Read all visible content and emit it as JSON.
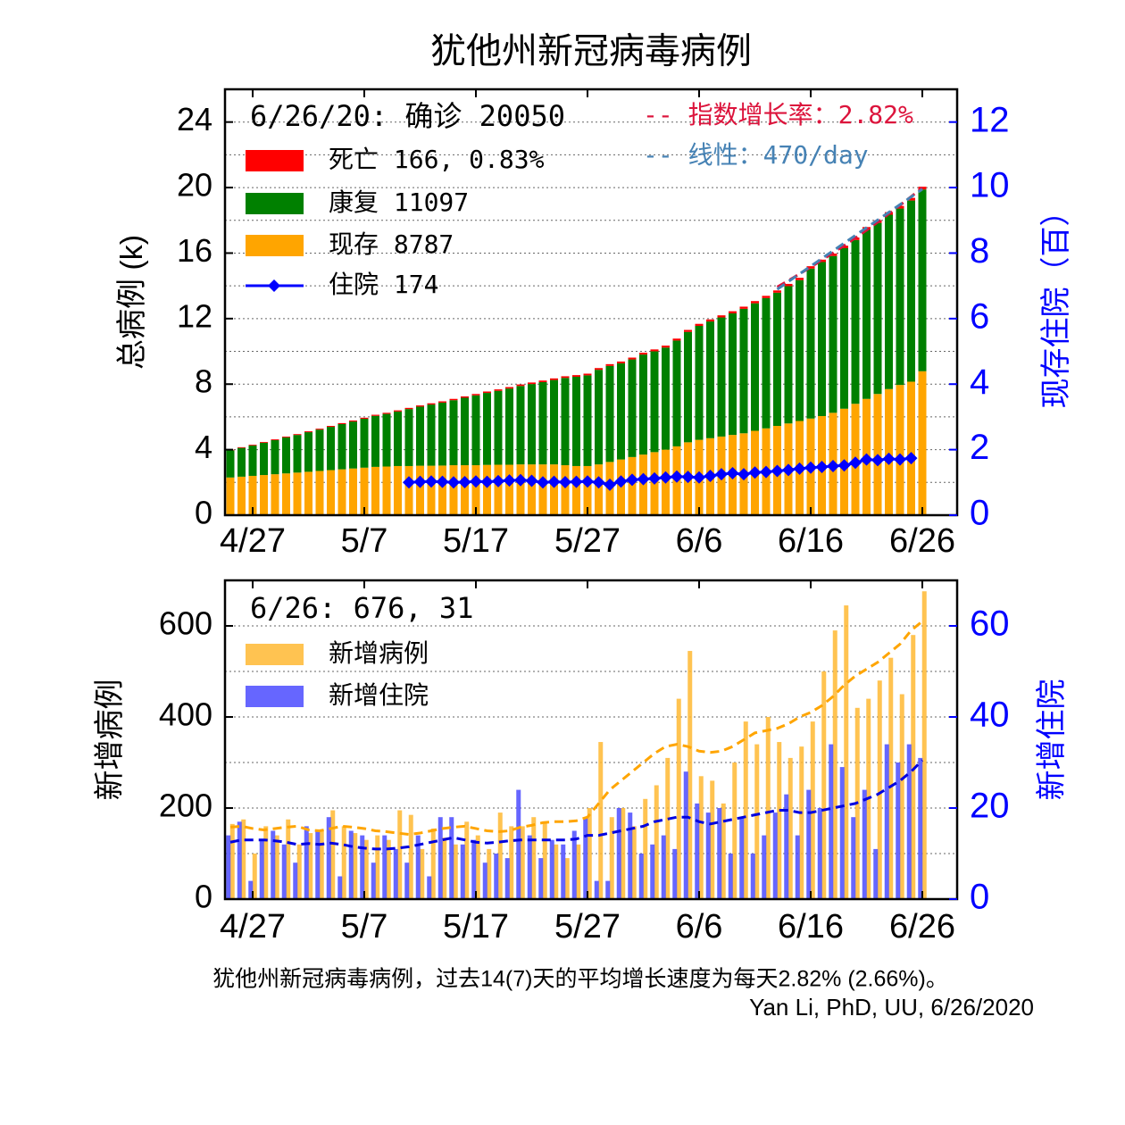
{
  "title": "犹他州新冠病毒病例",
  "footer": [
    "犹他州新冠病毒病例，过去14(7)天的平均增长速度为每天2.82% (2.66%)。",
    "Yan Li, PhD, UU, 6/26/2020"
  ],
  "chart_data": [
    {
      "type": "bar",
      "stacked": true,
      "annotation": "6/26/20: 确诊 20050",
      "ylabel": "总病例 (k)",
      "y2label": "现存住院（百）",
      "x": [
        "4/25",
        "4/26",
        "4/27",
        "4/28",
        "4/29",
        "4/30",
        "5/1",
        "5/2",
        "5/3",
        "5/4",
        "5/5",
        "5/6",
        "5/7",
        "5/8",
        "5/9",
        "5/10",
        "5/11",
        "5/12",
        "5/13",
        "5/14",
        "5/15",
        "5/16",
        "5/17",
        "5/18",
        "5/19",
        "5/20",
        "5/21",
        "5/22",
        "5/23",
        "5/24",
        "5/25",
        "5/26",
        "5/27",
        "5/28",
        "5/29",
        "5/30",
        "5/31",
        "6/1",
        "6/2",
        "6/3",
        "6/4",
        "6/5",
        "6/6",
        "6/7",
        "6/8",
        "6/9",
        "6/10",
        "6/11",
        "6/12",
        "6/13",
        "6/14",
        "6/15",
        "6/16",
        "6/17",
        "6/18",
        "6/19",
        "6/20",
        "6/21",
        "6/22",
        "6/23",
        "6/24",
        "6/25",
        "6/26"
      ],
      "xticks": [
        "4/27",
        "5/7",
        "5/17",
        "5/27",
        "6/6",
        "6/16",
        "6/26"
      ],
      "ylim": [
        0,
        26
      ],
      "yticks": [
        0,
        4,
        8,
        12,
        16,
        20,
        24
      ],
      "yminor": [
        2,
        6,
        10,
        14,
        18,
        22
      ],
      "grid": true,
      "y2lim": [
        0,
        13
      ],
      "y2ticks": [
        0,
        2,
        4,
        6,
        8,
        10,
        12
      ],
      "series": [
        {
          "name": "死亡 166, 0.83%",
          "color": "#ff0000",
          "kind": "bar",
          "values": [
            0.04,
            0.042,
            0.044,
            0.046,
            0.048,
            0.05,
            0.052,
            0.054,
            0.056,
            0.058,
            0.06,
            0.062,
            0.064,
            0.066,
            0.068,
            0.07,
            0.072,
            0.074,
            0.076,
            0.078,
            0.08,
            0.082,
            0.084,
            0.086,
            0.088,
            0.09,
            0.092,
            0.094,
            0.096,
            0.098,
            0.1,
            0.102,
            0.104,
            0.106,
            0.108,
            0.11,
            0.112,
            0.114,
            0.116,
            0.118,
            0.12,
            0.122,
            0.124,
            0.126,
            0.128,
            0.13,
            0.132,
            0.134,
            0.136,
            0.138,
            0.14,
            0.142,
            0.144,
            0.146,
            0.148,
            0.15,
            0.152,
            0.154,
            0.156,
            0.158,
            0.16,
            0.162,
            0.166
          ]
        },
        {
          "name": "康复 11097",
          "color": "#008000",
          "kind": "bar",
          "values": [
            1.66,
            1.758,
            1.856,
            1.974,
            2.082,
            2.2,
            2.298,
            2.416,
            2.524,
            2.642,
            2.76,
            2.868,
            2.986,
            3.114,
            3.212,
            3.33,
            3.478,
            3.606,
            3.734,
            3.842,
            3.97,
            4.118,
            4.266,
            4.394,
            4.512,
            4.65,
            4.788,
            4.906,
            5.024,
            5.152,
            5.33,
            5.448,
            5.536,
            5.774,
            5.862,
            5.87,
            5.958,
            6.106,
            6.154,
            6.232,
            6.46,
            6.738,
            6.956,
            7.124,
            7.272,
            7.42,
            7.598,
            7.786,
            7.954,
            8.132,
            8.38,
            8.598,
            9.156,
            9.404,
            9.572,
            9.8,
            9.998,
            10.336,
            10.444,
            10.642,
            10.77,
            11.058,
            11.097
          ]
        },
        {
          "name": "现存 8787",
          "color": "#ffa500",
          "kind": "bar",
          "values": [
            2.3,
            2.35,
            2.4,
            2.45,
            2.5,
            2.55,
            2.6,
            2.65,
            2.7,
            2.75,
            2.8,
            2.85,
            2.9,
            2.95,
            2.97,
            3.0,
            3.0,
            3.02,
            3.02,
            3.03,
            3.05,
            3.05,
            3.05,
            3.07,
            3.08,
            3.08,
            3.1,
            3.1,
            3.1,
            3.1,
            3.05,
            3.0,
            3.0,
            3.1,
            3.25,
            3.4,
            3.55,
            3.7,
            3.85,
            4.0,
            4.2,
            4.45,
            4.6,
            4.7,
            4.8,
            4.9,
            5.0,
            5.15,
            5.3,
            5.45,
            5.6,
            5.75,
            5.9,
            6.05,
            6.25,
            6.5,
            6.8,
            7.1,
            7.4,
            7.7,
            7.95,
            8.15,
            8.787
          ]
        },
        {
          "name": "住院 174",
          "color": "#0000ff",
          "kind": "line",
          "marker": "diamond",
          "axis": "y2",
          "values": [
            null,
            null,
            null,
            null,
            null,
            null,
            null,
            null,
            null,
            null,
            null,
            null,
            null,
            null,
            null,
            null,
            1.0,
            1.02,
            1.03,
            1.02,
            1.0,
            1.01,
            1.03,
            1.02,
            1.04,
            1.06,
            1.07,
            1.05,
            1.0,
            1.02,
            1.01,
            1.02,
            1.03,
            1.0,
            0.93,
            1.03,
            1.08,
            1.1,
            1.12,
            1.15,
            1.18,
            1.17,
            1.15,
            1.2,
            1.25,
            1.28,
            1.25,
            1.3,
            1.32,
            1.35,
            1.38,
            1.42,
            1.45,
            1.47,
            1.5,
            1.52,
            1.6,
            1.7,
            1.68,
            1.72,
            1.7,
            1.74,
            null
          ]
        },
        {
          "name": "-- 指数增长率：2.82%",
          "color": "#dc143c",
          "kind": "line",
          "dash": true,
          "values": [
            null,
            null,
            null,
            null,
            null,
            null,
            null,
            null,
            null,
            null,
            null,
            null,
            null,
            null,
            null,
            null,
            null,
            null,
            null,
            null,
            null,
            null,
            null,
            null,
            null,
            null,
            null,
            null,
            null,
            null,
            null,
            null,
            null,
            null,
            null,
            null,
            null,
            null,
            null,
            null,
            null,
            null,
            null,
            null,
            null,
            null,
            null,
            null,
            null,
            13.93,
            14.32,
            14.73,
            15.14,
            15.57,
            16.01,
            16.46,
            16.93,
            17.4,
            17.89,
            18.4,
            18.92,
            19.45,
            20.0
          ]
        },
        {
          "name": "-- 线性：470/day",
          "color": "#4682b4",
          "kind": "line",
          "dash": true,
          "values": [
            null,
            null,
            null,
            null,
            null,
            null,
            null,
            null,
            null,
            null,
            null,
            null,
            null,
            null,
            null,
            null,
            null,
            null,
            null,
            null,
            null,
            null,
            null,
            null,
            null,
            null,
            null,
            null,
            null,
            null,
            null,
            null,
            null,
            null,
            null,
            null,
            null,
            null,
            null,
            null,
            null,
            null,
            null,
            null,
            null,
            null,
            null,
            null,
            null,
            13.79,
            14.26,
            14.73,
            15.2,
            15.67,
            16.14,
            16.61,
            17.08,
            17.55,
            18.02,
            18.49,
            18.96,
            19.43,
            19.9
          ]
        }
      ]
    },
    {
      "type": "bar",
      "stacked": false,
      "annotation": "6/26: 676, 31",
      "ylabel": "新增病例",
      "y2label": "新增住院",
      "x": [
        "4/25",
        "4/26",
        "4/27",
        "4/28",
        "4/29",
        "4/30",
        "5/1",
        "5/2",
        "5/3",
        "5/4",
        "5/5",
        "5/6",
        "5/7",
        "5/8",
        "5/9",
        "5/10",
        "5/11",
        "5/12",
        "5/13",
        "5/14",
        "5/15",
        "5/16",
        "5/17",
        "5/18",
        "5/19",
        "5/20",
        "5/21",
        "5/22",
        "5/23",
        "5/24",
        "5/25",
        "5/26",
        "5/27",
        "5/28",
        "5/29",
        "5/30",
        "5/31",
        "6/1",
        "6/2",
        "6/3",
        "6/4",
        "6/5",
        "6/6",
        "6/7",
        "6/8",
        "6/9",
        "6/10",
        "6/11",
        "6/12",
        "6/13",
        "6/14",
        "6/15",
        "6/16",
        "6/17",
        "6/18",
        "6/19",
        "6/20",
        "6/21",
        "6/22",
        "6/23",
        "6/24",
        "6/25",
        "6/26"
      ],
      "xticks": [
        "4/27",
        "5/7",
        "5/17",
        "5/27",
        "6/6",
        "6/16",
        "6/26"
      ],
      "ylim": [
        0,
        700
      ],
      "yticks": [
        0,
        200,
        400,
        600
      ],
      "yminor": [
        100,
        300,
        500
      ],
      "grid": true,
      "y2lim": [
        0,
        70
      ],
      "y2ticks": [
        0,
        20,
        40,
        60
      ],
      "series": [
        {
          "name": "新增病例",
          "color": "#ffb833",
          "kind": "bar",
          "values": [
            165,
            175,
            100,
            160,
            140,
            175,
            120,
            145,
            150,
            195,
            160,
            145,
            130,
            140,
            130,
            195,
            185,
            110,
            155,
            135,
            120,
            170,
            140,
            110,
            190,
            160,
            160,
            180,
            170,
            120,
            90,
            120,
            200,
            345,
            180,
            200,
            160,
            220,
            250,
            310,
            440,
            545,
            270,
            260,
            210,
            300,
            390,
            340,
            400,
            345,
            310,
            335,
            390,
            500,
            590,
            645,
            420,
            440,
            480,
            530,
            450,
            580,
            676
          ]
        },
        {
          "name": "新增住院",
          "color": "#4b4bff",
          "kind": "bar",
          "axis": "y2",
          "values": [
            14,
            17,
            4,
            13,
            15,
            12,
            8,
            16,
            15,
            18,
            5,
            15,
            14,
            8,
            14,
            11,
            8,
            14,
            5,
            18,
            18,
            12,
            13,
            8,
            10,
            9,
            24,
            14,
            9,
            13,
            12,
            15,
            18,
            4,
            4,
            20,
            19,
            10,
            12,
            14,
            11,
            28,
            21,
            19,
            20,
            10,
            18,
            10,
            14,
            19,
            23,
            14,
            24,
            20,
            34,
            29,
            18,
            24,
            11,
            34,
            30,
            34,
            31
          ]
        },
        {
          "color": "#ffa500",
          "kind": "line",
          "dash": true,
          "values": [
            158,
            160,
            155,
            152,
            155,
            158,
            160,
            152,
            150,
            155,
            160,
            158,
            155,
            150,
            148,
            145,
            142,
            145,
            150,
            155,
            158,
            160,
            155,
            150,
            148,
            150,
            158,
            162,
            168,
            170,
            170,
            172,
            180,
            210,
            240,
            260,
            280,
            300,
            320,
            335,
            340,
            335,
            325,
            322,
            325,
            335,
            350,
            365,
            370,
            375,
            385,
            400,
            410,
            425,
            445,
            470,
            490,
            505,
            520,
            540,
            560,
            590,
            610
          ]
        },
        {
          "color": "#0000e0",
          "kind": "line",
          "dash": true,
          "axis": "y2",
          "values": [
            12.5,
            13,
            13,
            13,
            12.8,
            12.5,
            12,
            12.2,
            12,
            12.3,
            12,
            11.5,
            11.2,
            11,
            11,
            11.2,
            11.5,
            12,
            12.5,
            13,
            13.5,
            13,
            12.5,
            12.3,
            12.5,
            12.8,
            13,
            13,
            13,
            13,
            13,
            13.2,
            14,
            14,
            14.5,
            15,
            15.5,
            16,
            17,
            17.5,
            18,
            18,
            17,
            16.5,
            17,
            17.5,
            18,
            18.5,
            19,
            19.5,
            19.5,
            19,
            19,
            19.5,
            20,
            20.5,
            21,
            22,
            23,
            24.5,
            26,
            28,
            30.5
          ]
        }
      ]
    }
  ]
}
